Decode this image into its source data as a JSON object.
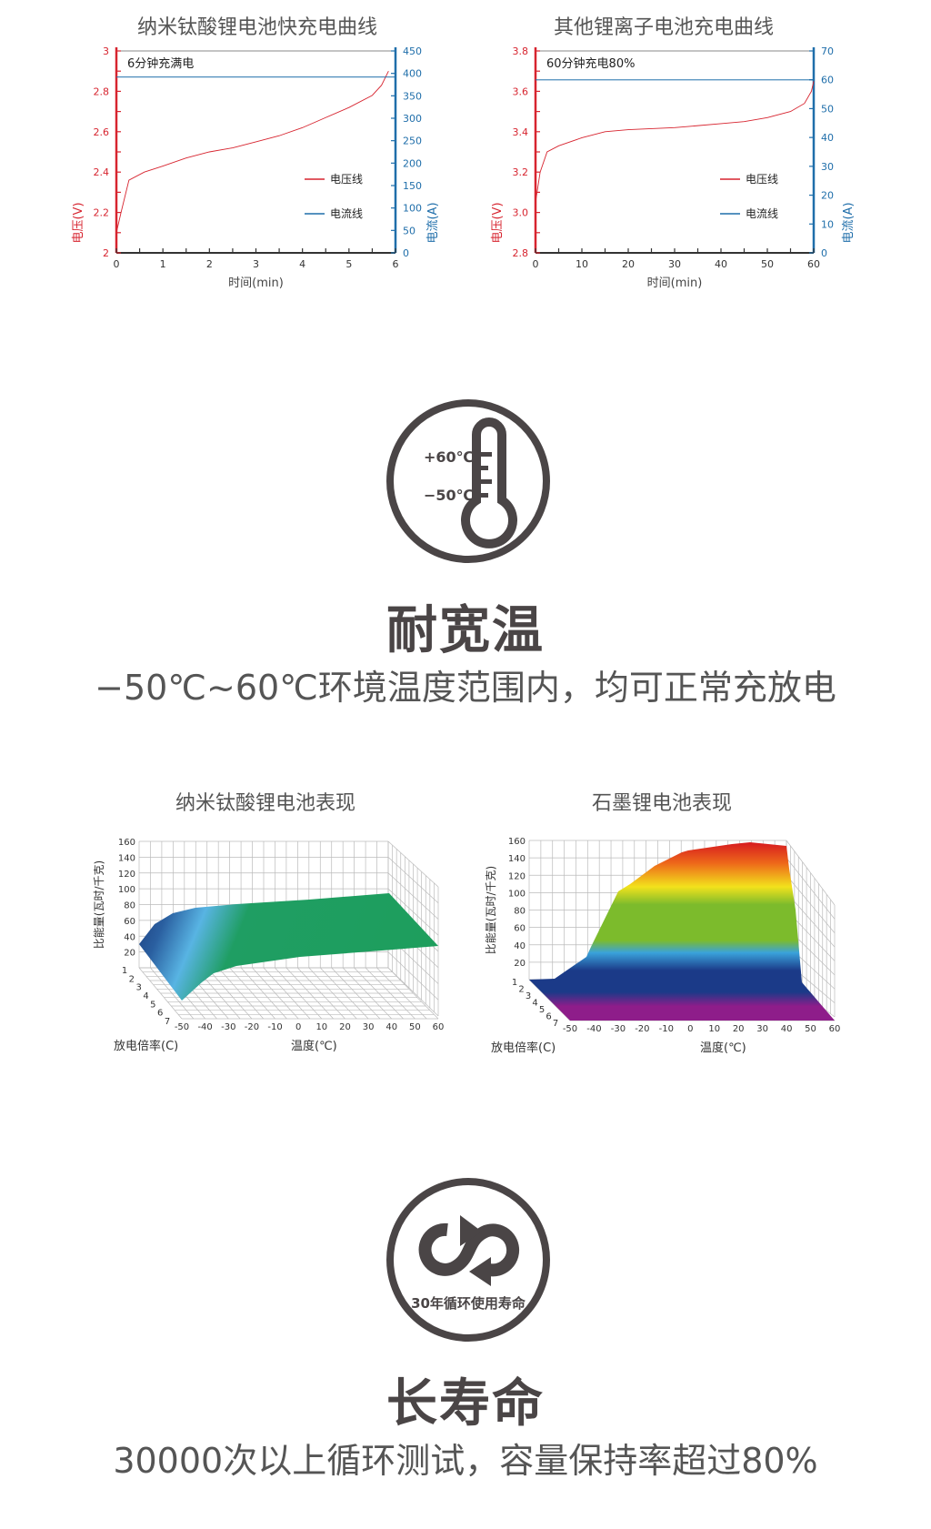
{
  "colors": {
    "voltage": "#d7242f",
    "current": "#1f6eaa",
    "icon": "#4a4546",
    "text": "#555555"
  },
  "chart_data": [
    {
      "type": "line",
      "title": "纳米钛酸锂电池快充电曲线",
      "annotation": "6分钟充满电",
      "xlabel": "时间(min)",
      "ylabel_left": "电压(V)",
      "ylabel_right": "电流(A)",
      "xlim": [
        0,
        6
      ],
      "ylim_left": [
        2,
        3
      ],
      "ylim_right": [
        0,
        450
      ],
      "x_ticks": [
        "0",
        "1",
        "2",
        "3",
        "4",
        "5",
        "6"
      ],
      "y_left_ticks": [
        "2",
        "2.2",
        "2.4",
        "2.6",
        "2.8",
        "3"
      ],
      "y_right_ticks": [
        "0",
        "50",
        "100",
        "150",
        "200",
        "250",
        "300",
        "350",
        "400",
        "450"
      ],
      "legend": [
        "电压线",
        "电流线"
      ],
      "legend_placement": "center-right",
      "series": [
        {
          "name": "电压线",
          "axis": "left",
          "x": [
            0,
            0.1,
            0.27,
            0.6,
            1,
            1.5,
            2,
            2.5,
            3,
            3.5,
            4,
            4.5,
            5,
            5.5,
            5.7,
            5.85
          ],
          "y": [
            2.1,
            2.2,
            2.36,
            2.4,
            2.43,
            2.47,
            2.5,
            2.52,
            2.55,
            2.58,
            2.62,
            2.67,
            2.72,
            2.78,
            2.83,
            2.9
          ]
        },
        {
          "name": "电流线",
          "axis": "right",
          "x": [
            0,
            6
          ],
          "y": [
            392,
            392
          ]
        }
      ]
    },
    {
      "type": "line",
      "title": "其他锂离子电池充电曲线",
      "annotation": "60分钟充电80%",
      "xlabel": "时间(min)",
      "ylabel_left": "电压(V)",
      "ylabel_right": "电流(A)",
      "xlim": [
        0,
        60
      ],
      "ylim_left": [
        2.8,
        3.8
      ],
      "ylim_right": [
        0,
        70
      ],
      "x_ticks": [
        "0",
        "10",
        "20",
        "30",
        "40",
        "50",
        "60"
      ],
      "y_left_ticks": [
        "2.8",
        "3.0",
        "3.2",
        "3.4",
        "3.6",
        "3.8"
      ],
      "y_right_ticks": [
        "0",
        "10",
        "20",
        "30",
        "40",
        "50",
        "60",
        "70"
      ],
      "legend": [
        "电压线",
        "电流线"
      ],
      "legend_placement": "center-right",
      "series": [
        {
          "name": "电压线",
          "axis": "left",
          "x": [
            0,
            1,
            2.5,
            5,
            10,
            15,
            20,
            30,
            40,
            45,
            50,
            55,
            58,
            59.5,
            60
          ],
          "y": [
            3.05,
            3.2,
            3.3,
            3.33,
            3.37,
            3.4,
            3.41,
            3.42,
            3.44,
            3.45,
            3.47,
            3.5,
            3.54,
            3.6,
            3.65
          ]
        },
        {
          "name": "电流线",
          "axis": "right",
          "x": [
            0,
            60
          ],
          "y": [
            60,
            60
          ]
        }
      ]
    },
    {
      "type": "surface3d",
      "title": "纳米钛酸锂电池表现",
      "xlabel": "温度(℃)",
      "ylabel": "放电倍率(C)",
      "zlabel": "比能量(瓦时/千克)",
      "x_ticks": [
        "-50",
        "-40",
        "-30",
        "-20",
        "-10",
        "0",
        "10",
        "20",
        "30",
        "40",
        "50",
        "60"
      ],
      "y_ticks": [
        "1",
        "2",
        "3",
        "4",
        "5",
        "6",
        "7"
      ],
      "z_ticks": [
        "20",
        "40",
        "60",
        "80",
        "100",
        "120",
        "140",
        "160"
      ],
      "zlim": [
        0,
        160
      ],
      "temperature": [
        -50,
        -40,
        -30,
        -20,
        -10,
        0,
        10,
        20,
        30,
        40,
        50,
        60
      ],
      "energy_at_1C": [
        28,
        62,
        70,
        73,
        75,
        77,
        79,
        80,
        81,
        82,
        83,
        84
      ]
    },
    {
      "type": "surface3d",
      "title": "石墨锂电池表现",
      "xlabel": "温度(℃)",
      "ylabel": "放电倍率(C)",
      "zlabel": "比能量(瓦时/千克)",
      "x_ticks": [
        "-50",
        "-40",
        "-30",
        "-20",
        "-10",
        "0",
        "10",
        "20",
        "30",
        "40",
        "50",
        "60"
      ],
      "y_ticks": [
        "1",
        "2",
        "3",
        "4",
        "5",
        "6",
        "7"
      ],
      "z_ticks": [
        "20",
        "40",
        "60",
        "80",
        "100",
        "120",
        "140",
        "160"
      ],
      "zlim": [
        0,
        160
      ],
      "temperature": [
        -50,
        -40,
        -30,
        -20,
        -10,
        0,
        10,
        20,
        30,
        40,
        50,
        60
      ],
      "energy_at_1C": [
        0,
        5,
        30,
        100,
        125,
        145,
        150,
        152,
        156,
        150,
        0,
        0
      ]
    }
  ],
  "section_temp": {
    "icon": "thermometer-icon",
    "icon_high": "+60℃",
    "icon_low": "−50℃",
    "heading": "耐宽温",
    "description": "−50℃~60℃环境温度范围内，均可正常充放电"
  },
  "section_life": {
    "icon": "cycle-arrows-icon",
    "icon_caption": "30年循环使用寿命",
    "heading": "长寿命",
    "description": "30000次以上循环测试，容量保持率超过80%"
  }
}
